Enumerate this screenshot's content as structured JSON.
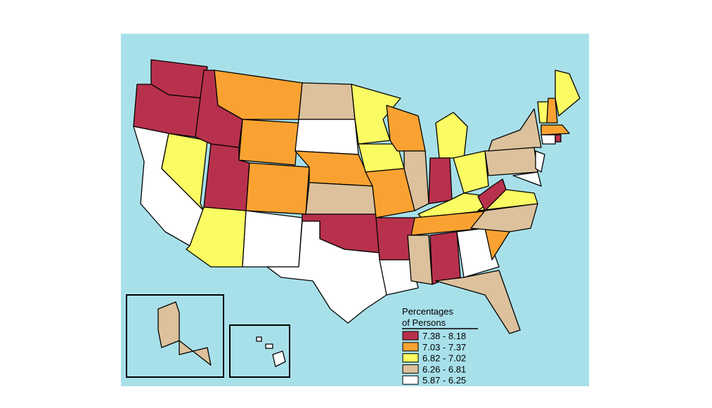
{
  "legend": {
    "title_lines": [
      "Percentages",
      "of Persons"
    ],
    "items": [
      {
        "label": "7.38 - 8.18",
        "color": "#b8314c"
      },
      {
        "label": "7.03 - 7.37",
        "color": "#f9a232"
      },
      {
        "label": "6.82 - 7.02",
        "color": "#fbfb63"
      },
      {
        "label": "6.26 - 6.81",
        "color": "#dcc19c"
      },
      {
        "label": "5.87 - 6.25",
        "color": "#ffffff"
      }
    ]
  }
}
